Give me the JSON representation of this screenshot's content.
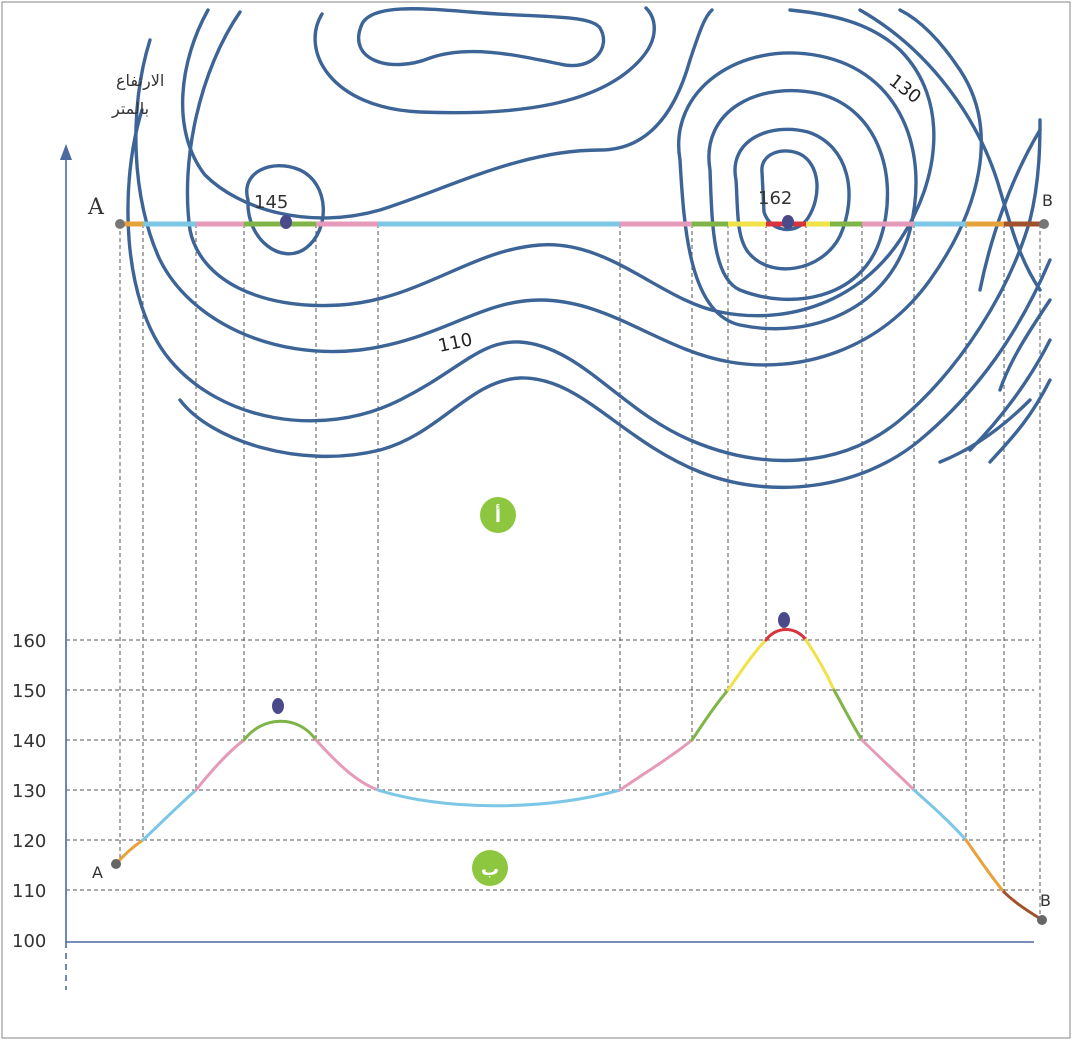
{
  "y_axis": {
    "title_line1": "الارتفاع",
    "title_line2": "بالمتر",
    "ticks": [
      "100",
      "110",
      "120",
      "130",
      "140",
      "150",
      "160"
    ]
  },
  "map": {
    "point_a": "A",
    "point_b": "B",
    "peak_left": "145",
    "peak_right": "162",
    "contour_110": "110",
    "contour_130": "130",
    "badge": "أ"
  },
  "profile": {
    "point_a": "A",
    "point_b": "B",
    "badge": "ب"
  },
  "colors": {
    "contour": "#3d6496",
    "orange": "#e8a23a",
    "blue": "#7cc6e6",
    "pink": "#e49ab8",
    "green": "#7fb446",
    "yellow": "#f2e24a",
    "red": "#d9343b",
    "badge": "#8dc63f",
    "marker": "#4a4a8a"
  }
}
